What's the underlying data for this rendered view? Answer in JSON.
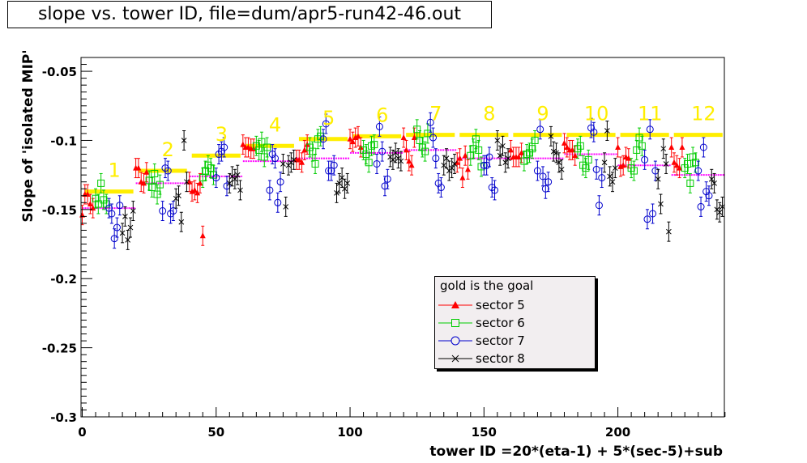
{
  "title": "slope vs. tower ID, file=dum/apr5-run42-46.out",
  "chart_data": {
    "type": "scatter",
    "title": "slope vs. tower ID, file=dum/apr5-run42-46.out",
    "xlabel": "tower ID =20*(eta-1) + 5*(sec-5)+sub",
    "ylabel": "Slope of 'isolated MIP'",
    "xlim": [
      0,
      240
    ],
    "ylim": [
      -0.3,
      -0.04
    ],
    "x_ticks": [
      "0",
      "50",
      "100",
      "150",
      "200"
    ],
    "y_ticks": [
      "-0.05",
      "-0.1",
      "-0.15",
      "-0.2",
      "-0.25",
      "-0.3"
    ],
    "eta_labels": [
      "1",
      "2",
      "3",
      "4",
      "5",
      "6",
      "7",
      "8",
      "9",
      "10",
      "11",
      "12"
    ],
    "gold_segments": [
      {
        "x0": 0,
        "x1": 20,
        "y": -0.137
      },
      {
        "x0": 20,
        "x1": 40,
        "y": -0.122
      },
      {
        "x0": 40,
        "x1": 60,
        "y": -0.111
      },
      {
        "x0": 60,
        "x1": 80,
        "y": -0.104
      },
      {
        "x0": 80,
        "x1": 100,
        "y": -0.099
      },
      {
        "x0": 100,
        "x1": 120,
        "y": -0.097
      },
      {
        "x0": 120,
        "x1": 140,
        "y": -0.096
      },
      {
        "x0": 140,
        "x1": 160,
        "y": -0.096
      },
      {
        "x0": 160,
        "x1": 180,
        "y": -0.096
      },
      {
        "x0": 180,
        "x1": 200,
        "y": -0.096
      },
      {
        "x0": 200,
        "x1": 220,
        "y": -0.096
      },
      {
        "x0": 220,
        "x1": 240,
        "y": -0.096
      }
    ],
    "mean_segments": [
      {
        "x0": 0,
        "x1": 20,
        "y": -0.149
      },
      {
        "x0": 20,
        "x1": 40,
        "y": -0.131
      },
      {
        "x0": 40,
        "x1": 60,
        "y": -0.126
      },
      {
        "x0": 60,
        "x1": 80,
        "y": -0.115
      },
      {
        "x0": 80,
        "x1": 100,
        "y": -0.113
      },
      {
        "x0": 100,
        "x1": 120,
        "y": -0.109
      },
      {
        "x0": 120,
        "x1": 140,
        "y": -0.107
      },
      {
        "x0": 140,
        "x1": 160,
        "y": -0.113
      },
      {
        "x0": 160,
        "x1": 180,
        "y": -0.113
      },
      {
        "x0": 180,
        "x1": 200,
        "y": -0.11
      },
      {
        "x0": 200,
        "x1": 220,
        "y": -0.118
      },
      {
        "x0": 220,
        "x1": 240,
        "y": -0.125
      }
    ],
    "legend": {
      "header": "gold is the goal",
      "entries": [
        {
          "name": "sector 5",
          "color": "#ff0000",
          "marker": "triangle"
        },
        {
          "name": "sector 6",
          "color": "#00cc00",
          "marker": "square"
        },
        {
          "name": "sector 7",
          "color": "#0000cc",
          "marker": "circle"
        },
        {
          "name": "sector 8",
          "color": "#000000",
          "marker": "x"
        }
      ]
    },
    "err": 0.007,
    "series": [
      {
        "name": "sector 5",
        "color": "#ff0000",
        "marker": "triangle",
        "x": [
          0,
          1,
          2,
          3,
          4,
          20,
          21,
          22,
          23,
          24,
          40,
          41,
          42,
          43,
          44,
          45,
          60,
          61,
          62,
          63,
          64,
          80,
          81,
          82,
          83,
          84,
          100,
          101,
          102,
          103,
          104,
          120,
          121,
          122,
          123,
          124,
          140,
          141,
          142,
          143,
          144,
          160,
          161,
          162,
          163,
          164,
          180,
          181,
          182,
          183,
          184,
          200,
          201,
          202,
          203,
          204,
          220,
          221,
          222,
          223,
          224
        ],
        "y": [
          -0.154,
          -0.139,
          -0.139,
          -0.146,
          -0.149,
          -0.12,
          -0.12,
          -0.13,
          -0.131,
          -0.123,
          -0.13,
          -0.137,
          -0.136,
          -0.138,
          -0.131,
          -0.169,
          -0.103,
          -0.105,
          -0.105,
          -0.106,
          -0.106,
          -0.114,
          -0.114,
          -0.116,
          -0.107,
          -0.103,
          -0.099,
          -0.101,
          -0.098,
          -0.097,
          -0.105,
          -0.098,
          -0.107,
          -0.115,
          -0.118,
          -0.098,
          -0.116,
          -0.113,
          -0.127,
          -0.111,
          -0.121,
          -0.107,
          -0.112,
          -0.112,
          -0.112,
          -0.109,
          -0.102,
          -0.105,
          -0.107,
          -0.107,
          -0.111,
          -0.105,
          -0.119,
          -0.118,
          -0.112,
          -0.113,
          -0.105,
          -0.116,
          -0.118,
          -0.12,
          -0.105
        ]
      },
      {
        "name": "sector 6",
        "color": "#00cc00",
        "marker": "square",
        "x": [
          5,
          6,
          7,
          8,
          9,
          25,
          26,
          27,
          28,
          29,
          45,
          46,
          47,
          48,
          49,
          65,
          66,
          67,
          68,
          69,
          85,
          86,
          87,
          88,
          89,
          105,
          106,
          107,
          108,
          109,
          125,
          126,
          127,
          128,
          129,
          145,
          146,
          147,
          148,
          149,
          165,
          166,
          167,
          168,
          169,
          185,
          186,
          187,
          188,
          189,
          205,
          206,
          207,
          208,
          209,
          225,
          226,
          227,
          228,
          229
        ],
        "y": [
          -0.142,
          -0.146,
          -0.131,
          -0.143,
          -0.146,
          -0.129,
          -0.134,
          -0.124,
          -0.139,
          -0.132,
          -0.127,
          -0.122,
          -0.118,
          -0.12,
          -0.125,
          -0.104,
          -0.107,
          -0.101,
          -0.112,
          -0.105,
          -0.105,
          -0.108,
          -0.117,
          -0.099,
          -0.097,
          -0.107,
          -0.11,
          -0.116,
          -0.104,
          -0.103,
          -0.092,
          -0.1,
          -0.105,
          -0.108,
          -0.095,
          -0.111,
          -0.106,
          -0.099,
          -0.107,
          -0.119,
          -0.115,
          -0.11,
          -0.109,
          -0.106,
          -0.1,
          -0.106,
          -0.104,
          -0.118,
          -0.12,
          -0.114,
          -0.12,
          -0.122,
          -0.107,
          -0.098,
          -0.104,
          -0.12,
          -0.117,
          -0.131,
          -0.112,
          -0.116
        ]
      },
      {
        "name": "sector 7",
        "color": "#0000cc",
        "marker": "circle",
        "x": [
          10,
          11,
          12,
          13,
          14,
          30,
          31,
          32,
          33,
          34,
          50,
          51,
          52,
          53,
          54,
          70,
          71,
          72,
          73,
          74,
          90,
          91,
          92,
          93,
          94,
          110,
          111,
          112,
          113,
          114,
          130,
          131,
          132,
          133,
          134,
          150,
          151,
          152,
          153,
          154,
          170,
          171,
          172,
          173,
          174,
          190,
          191,
          192,
          193,
          194,
          210,
          211,
          212,
          213,
          214,
          230,
          231,
          232,
          233,
          234
        ],
        "y": [
          -0.149,
          -0.153,
          -0.171,
          -0.163,
          -0.147,
          -0.151,
          -0.12,
          -0.122,
          -0.153,
          -0.151,
          -0.127,
          -0.11,
          -0.108,
          -0.105,
          -0.133,
          -0.136,
          -0.11,
          -0.113,
          -0.145,
          -0.13,
          -0.099,
          -0.088,
          -0.122,
          -0.122,
          -0.118,
          -0.117,
          -0.09,
          -0.108,
          -0.133,
          -0.128,
          -0.087,
          -0.098,
          -0.113,
          -0.131,
          -0.134,
          -0.118,
          -0.118,
          -0.112,
          -0.134,
          -0.136,
          -0.122,
          -0.092,
          -0.126,
          -0.135,
          -0.13,
          -0.091,
          -0.094,
          -0.121,
          -0.147,
          -0.127,
          -0.114,
          -0.157,
          -0.092,
          -0.153,
          -0.122,
          -0.122,
          -0.148,
          -0.105,
          -0.137,
          -0.14
        ]
      },
      {
        "name": "sector 8",
        "color": "#000000",
        "marker": "x",
        "x": [
          15,
          16,
          17,
          18,
          19,
          35,
          36,
          37,
          38,
          39,
          55,
          56,
          57,
          58,
          59,
          75,
          76,
          77,
          78,
          79,
          95,
          96,
          97,
          98,
          99,
          115,
          116,
          117,
          118,
          119,
          135,
          136,
          137,
          138,
          139,
          155,
          156,
          157,
          158,
          159,
          175,
          176,
          177,
          178,
          179,
          195,
          196,
          197,
          198,
          199,
          215,
          216,
          217,
          218,
          219,
          235,
          236,
          237,
          238,
          239
        ],
        "y": [
          -0.167,
          -0.155,
          -0.172,
          -0.163,
          -0.151,
          -0.142,
          -0.14,
          -0.159,
          -0.1,
          -0.13,
          -0.131,
          -0.126,
          -0.128,
          -0.125,
          -0.136,
          -0.117,
          -0.148,
          -0.118,
          -0.116,
          -0.114,
          -0.138,
          -0.131,
          -0.127,
          -0.135,
          -0.131,
          -0.112,
          -0.114,
          -0.109,
          -0.113,
          -0.115,
          -0.118,
          -0.113,
          -0.122,
          -0.12,
          -0.117,
          -0.1,
          -0.111,
          -0.104,
          -0.116,
          -0.113,
          -0.097,
          -0.108,
          -0.109,
          -0.116,
          -0.121,
          -0.116,
          -0.093,
          -0.126,
          -0.13,
          -0.12,
          -0.128,
          -0.146,
          -0.106,
          -0.117,
          -0.166,
          -0.128,
          -0.131,
          -0.15,
          -0.152,
          -0.148
        ]
      }
    ]
  }
}
